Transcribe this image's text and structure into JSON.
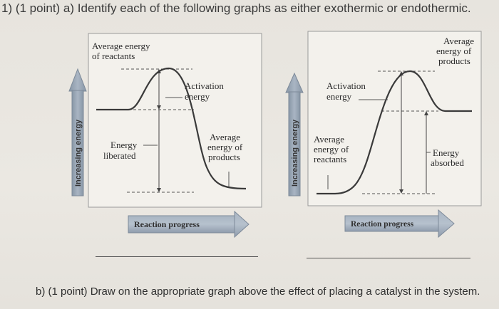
{
  "question": {
    "part_a": "1)  (1 point)  a)  Identify each of the following graphs as either exothermic or endothermic.",
    "part_b": "b) (1 point)  Draw on the appropriate graph above the effect of placing a catalyst in the system."
  },
  "graph_left": {
    "avg_reactants": [
      "Average energy",
      "of reactants"
    ],
    "activation": [
      "Activation",
      "energy"
    ],
    "liberated": [
      "Energy",
      "liberated"
    ],
    "avg_products": [
      "Average",
      "energy of",
      "products"
    ],
    "y_axis": "Increasing energy",
    "x_axis": "Reaction progress"
  },
  "graph_right": {
    "avg_products": [
      "Average",
      "energy of",
      "products"
    ],
    "activation": [
      "Activation",
      "energy"
    ],
    "avg_reactants": [
      "Average",
      "energy of",
      "reactants"
    ],
    "absorbed": [
      "Energy",
      "absorbed"
    ],
    "y_axis": "Increasing energy",
    "x_axis": "Reaction progress"
  },
  "colors": {
    "arrow": "#9aa7b6",
    "arrow_edge": "#7d8a99",
    "curve": "#3a3a3a",
    "panel": "#f1efea"
  }
}
